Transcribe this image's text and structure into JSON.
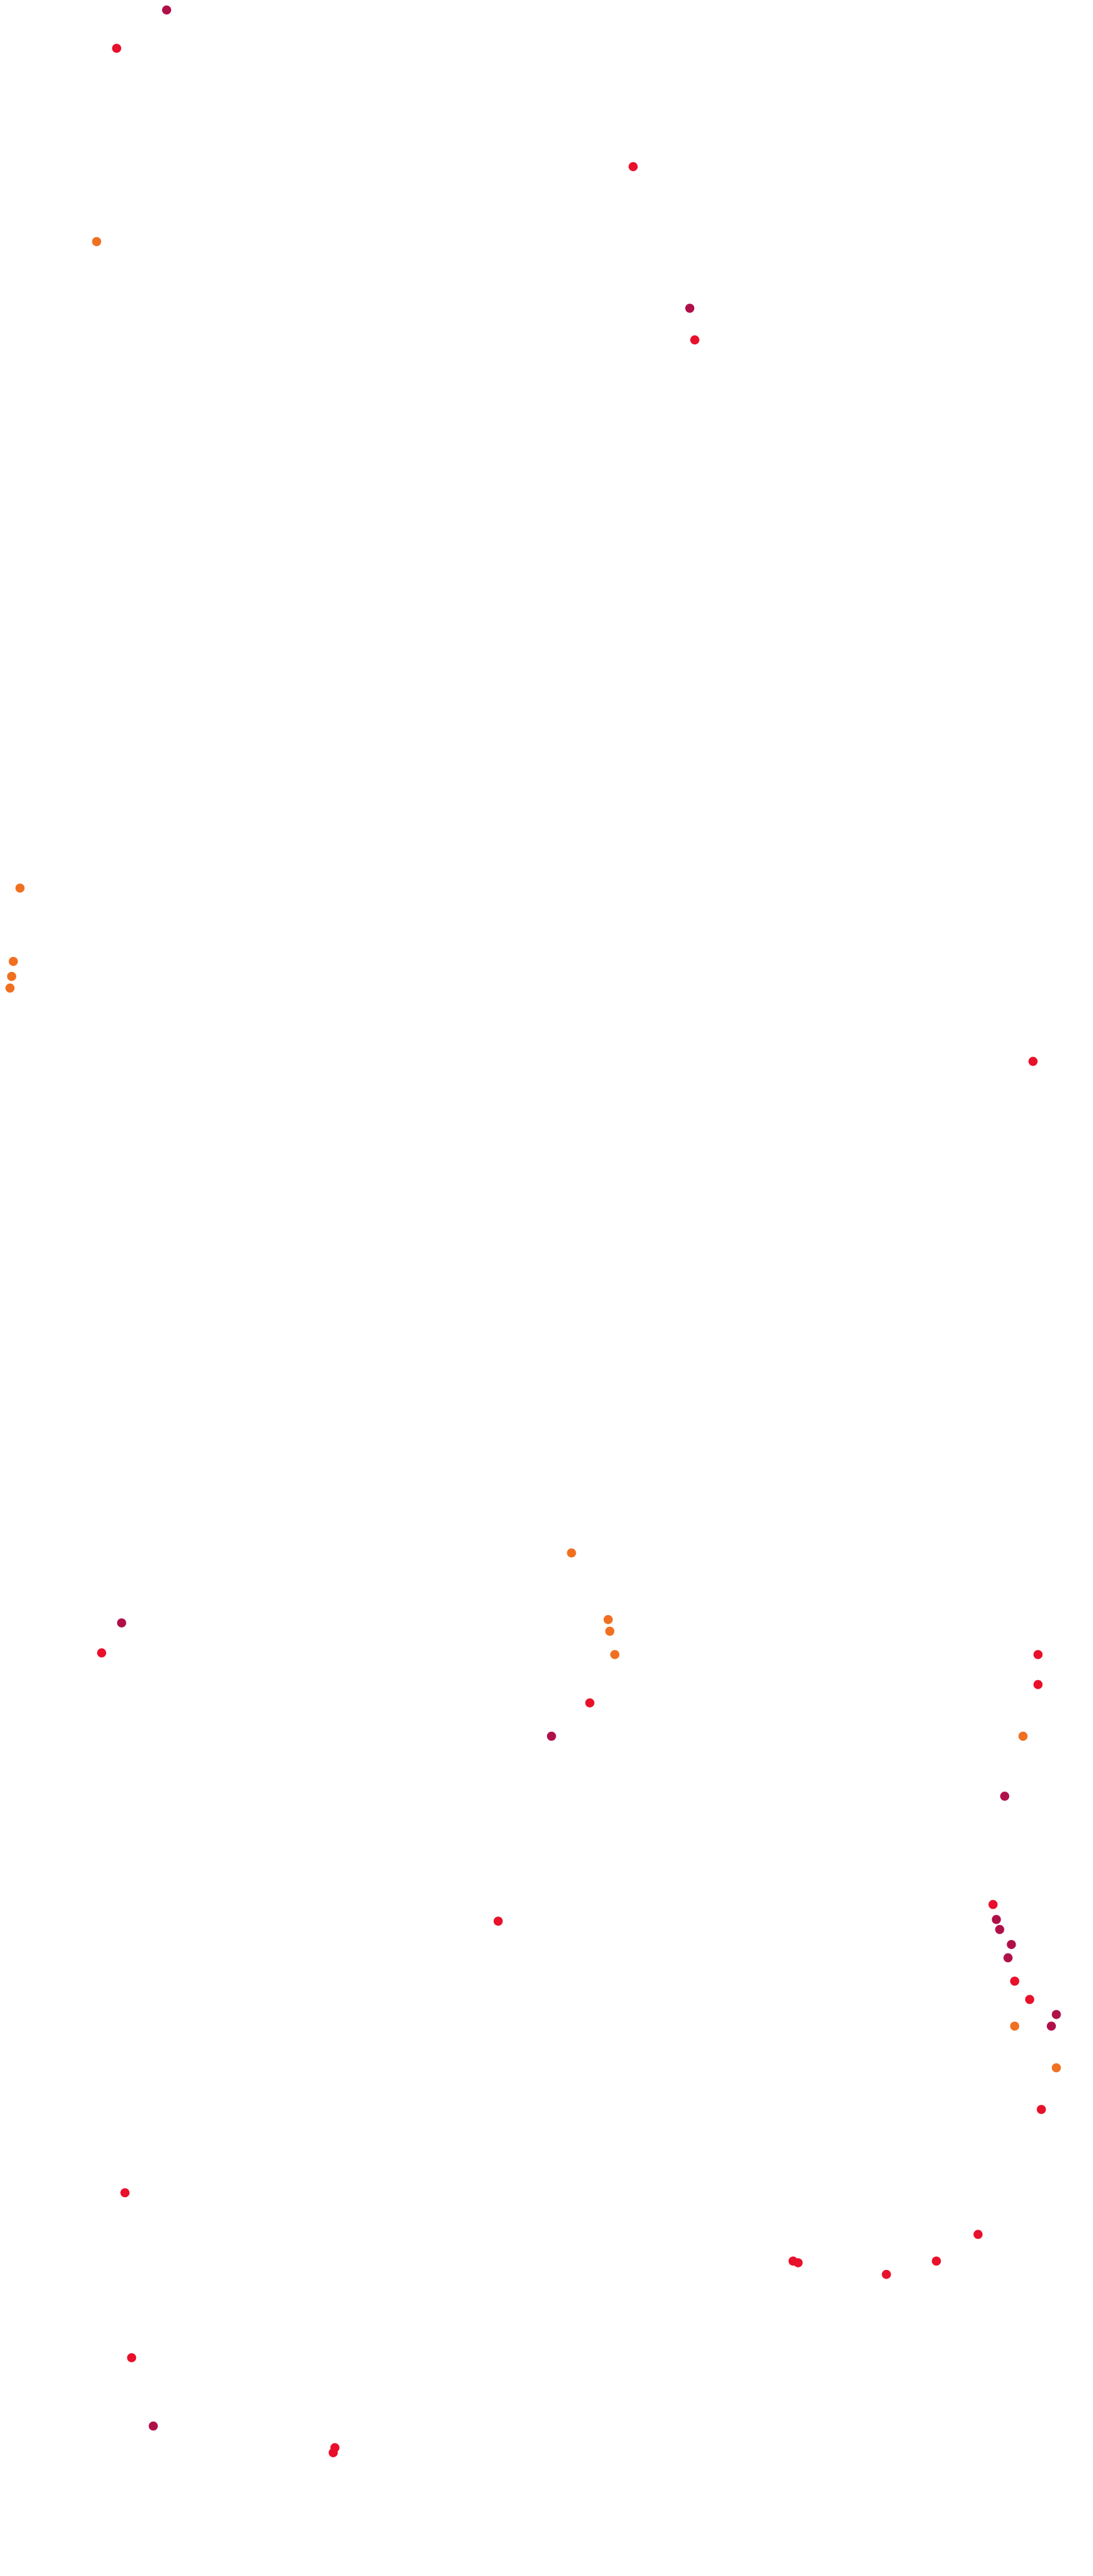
{
  "chart_data": {
    "type": "scatter",
    "xlim": [
      0,
      656
    ],
    "ylim": [
      1546,
      0
    ],
    "series": [
      {
        "color": "#e8102a",
        "x": [
          70,
          380,
          417,
          620,
          61,
          623,
          623,
          354,
          299,
          609,
          618,
          625,
          75,
          79,
          476,
          479,
          532,
          562,
          587,
          201,
          200,
          596
        ],
        "y": [
          29,
          100,
          204,
          637,
          992,
          993,
          1011,
          1022,
          1153,
          1189,
          1200,
          1266,
          1316,
          1415,
          1357,
          1358,
          1365,
          1357,
          1341,
          1469,
          1472,
          1143
        ]
      },
      {
        "color": "#b0104a",
        "x": [
          100,
          414,
          73,
          331,
          603,
          598,
          600,
          607,
          605,
          631,
          634,
          92
        ],
        "y": [
          6,
          185,
          974,
          1042,
          1078,
          1152,
          1158,
          1167,
          1175,
          1216,
          1209,
          1456
        ]
      },
      {
        "color": "#f07020",
        "x": [
          58,
          12,
          8,
          7,
          6,
          343,
          365,
          366,
          369,
          614,
          609,
          634
        ],
        "y": [
          145,
          533,
          577,
          586,
          593,
          932,
          972,
          979,
          993,
          1042,
          1216,
          1241
        ]
      }
    ]
  }
}
